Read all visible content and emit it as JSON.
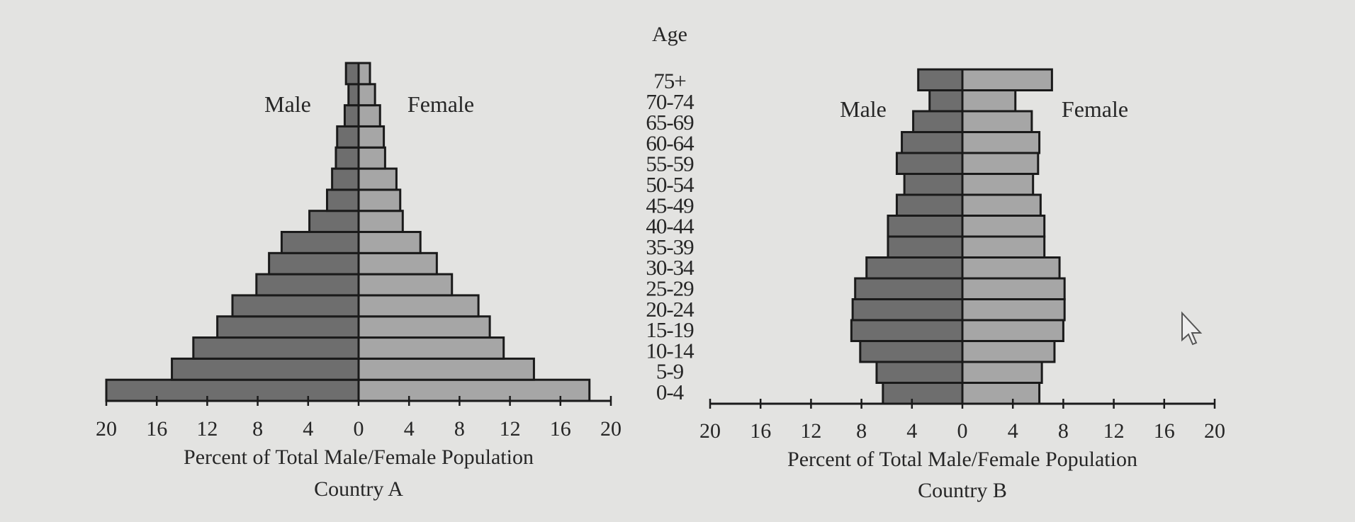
{
  "age_axis_title": "Age",
  "age_groups": [
    "0-4",
    "5-9",
    "10-14",
    "15-19",
    "20-24",
    "25-29",
    "30-34",
    "35-39",
    "40-44",
    "45-49",
    "50-54",
    "55-59",
    "60-64",
    "65-69",
    "70-74",
    "75+"
  ],
  "colors": {
    "male": "#6e6e6e",
    "female": "#a6a6a6",
    "outline": "#1a1a1a",
    "background": "#e3e3e1"
  },
  "chart_data": [
    {
      "type": "bar",
      "subtype": "population-pyramid",
      "title": "Country A",
      "xlabel": "Percent of Total Male/Female Population",
      "ylabel": "Age",
      "xlim": [
        -20,
        20
      ],
      "xticks": [
        "20",
        "16",
        "12",
        "8",
        "4",
        "0",
        "4",
        "8",
        "12",
        "16",
        "20"
      ],
      "categories": [
        "0-4",
        "5-9",
        "10-14",
        "15-19",
        "20-24",
        "25-29",
        "30-34",
        "35-39",
        "40-44",
        "45-49",
        "50-54",
        "55-59",
        "60-64",
        "65-69",
        "70-74",
        "75+"
      ],
      "series": [
        {
          "name": "Male",
          "values": [
            20,
            14.8,
            13.1,
            11.2,
            10,
            8.1,
            7.1,
            6.1,
            3.9,
            2.5,
            2.1,
            1.8,
            1.7,
            1.1,
            0.8,
            1.0
          ]
        },
        {
          "name": "Female",
          "values": [
            18.3,
            13.9,
            11.5,
            10.4,
            9.5,
            7.4,
            6.2,
            4.9,
            3.5,
            3.3,
            3.0,
            2.1,
            2.0,
            1.7,
            1.3,
            0.9
          ]
        }
      ],
      "grid": false
    },
    {
      "type": "bar",
      "subtype": "population-pyramid",
      "title": "Country B",
      "xlabel": "Percent of Total Male/Female Population",
      "ylabel": "Age",
      "xlim": [
        -20,
        20
      ],
      "xticks": [
        "20",
        "16",
        "12",
        "8",
        "4",
        "0",
        "4",
        "8",
        "12",
        "16",
        "20"
      ],
      "categories": [
        "0-4",
        "5-9",
        "10-14",
        "15-19",
        "20-24",
        "25-29",
        "30-34",
        "35-39",
        "40-44",
        "45-49",
        "50-54",
        "55-59",
        "60-64",
        "65-69",
        "70-74",
        "75+"
      ],
      "series": [
        {
          "name": "Male",
          "values": [
            6.3,
            6.8,
            8.1,
            8.8,
            8.7,
            8.5,
            7.6,
            5.9,
            5.9,
            5.2,
            4.6,
            5.2,
            4.8,
            3.9,
            2.6,
            3.5
          ]
        },
        {
          "name": "Female",
          "values": [
            6.1,
            6.3,
            7.3,
            8.0,
            8.1,
            8.1,
            7.7,
            6.5,
            6.5,
            6.2,
            5.6,
            6.0,
            6.1,
            5.5,
            4.2,
            7.1
          ]
        }
      ],
      "grid": false
    }
  ]
}
